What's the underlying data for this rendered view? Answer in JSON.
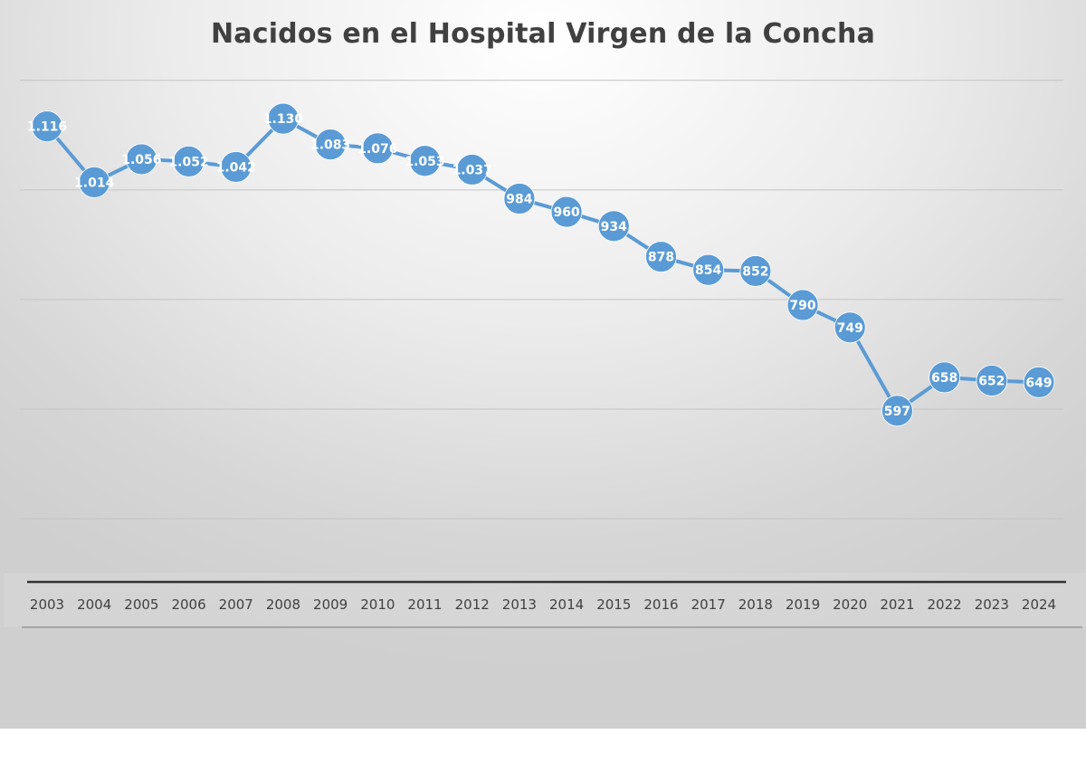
{
  "chart_data": {
    "type": "line",
    "title": "Nacidos en el Hospital Virgen de la Concha",
    "xlabel": "",
    "ylabel": "",
    "categories": [
      "2003",
      "2004",
      "2005",
      "2006",
      "2007",
      "2008",
      "2009",
      "2010",
      "2011",
      "2012",
      "2013",
      "2014",
      "2015",
      "2016",
      "2017",
      "2018",
      "2019",
      "2020",
      "2021",
      "2022",
      "2023",
      "2024"
    ],
    "values": [
      1116,
      1014,
      1056,
      1052,
      1042,
      1130,
      1083,
      1076,
      1053,
      1037,
      984,
      960,
      934,
      878,
      854,
      852,
      790,
      749,
      597,
      658,
      652,
      649
    ],
    "data_labels": [
      "1.116",
      "1.014",
      "1.056",
      "1.052",
      "1.042",
      "1.130",
      "1.083",
      "1.076",
      "1.053",
      "1.037",
      "984",
      "960",
      "934",
      "878",
      "854",
      "852",
      "790",
      "749",
      "597",
      "658",
      "652",
      "649"
    ],
    "gridlines_at": [
      400,
      600,
      800,
      1000,
      1200
    ],
    "grid": true,
    "y_axis_labels_shown": false,
    "legend": "none",
    "series_color": "#5b9bd5",
    "marker": "circle"
  }
}
